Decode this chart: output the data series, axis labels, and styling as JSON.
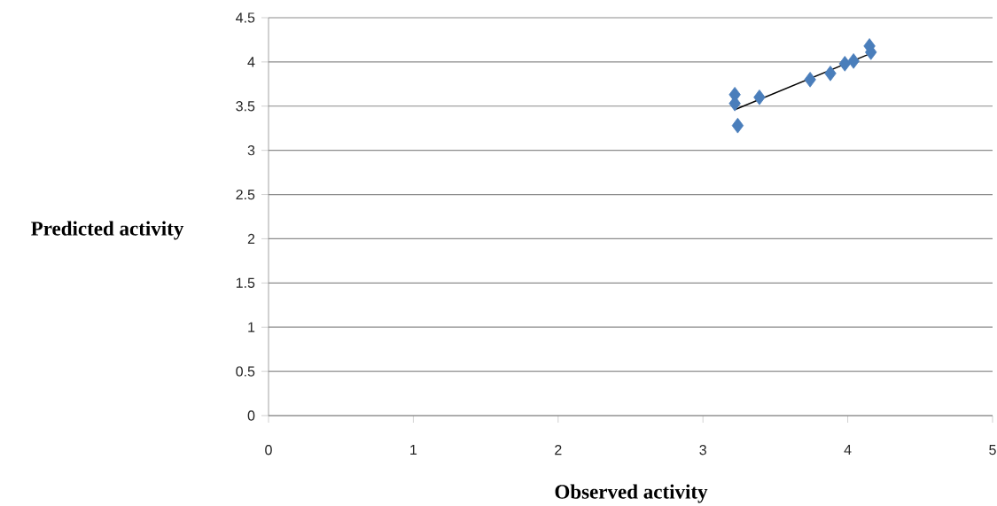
{
  "chart_data": {
    "type": "scatter",
    "xlabel": "Observed activity",
    "ylabel": "Predicted activity",
    "xlim": [
      0,
      5
    ],
    "ylim": [
      0,
      4.5
    ],
    "xticks": [
      0,
      1,
      2,
      3,
      4,
      5
    ],
    "yticks": [
      0,
      0.5,
      1,
      1.5,
      2,
      2.5,
      3,
      3.5,
      4,
      4.5
    ],
    "grid": "y",
    "series": [
      {
        "color": "#4a7ebb",
        "marker": "diamond",
        "x": [
          3.22,
          3.22,
          3.24,
          3.39,
          3.74,
          3.88,
          3.98,
          4.04,
          4.15,
          4.16
        ],
        "values": [
          3.63,
          3.53,
          3.28,
          3.6,
          3.8,
          3.87,
          3.98,
          4.01,
          4.18,
          4.11
        ]
      },
      {
        "type": "line",
        "color": "#000000",
        "marker": "none",
        "line_style": "solid",
        "x": [
          3.22,
          4.15
        ],
        "values": [
          3.46,
          4.09
        ]
      }
    ]
  }
}
